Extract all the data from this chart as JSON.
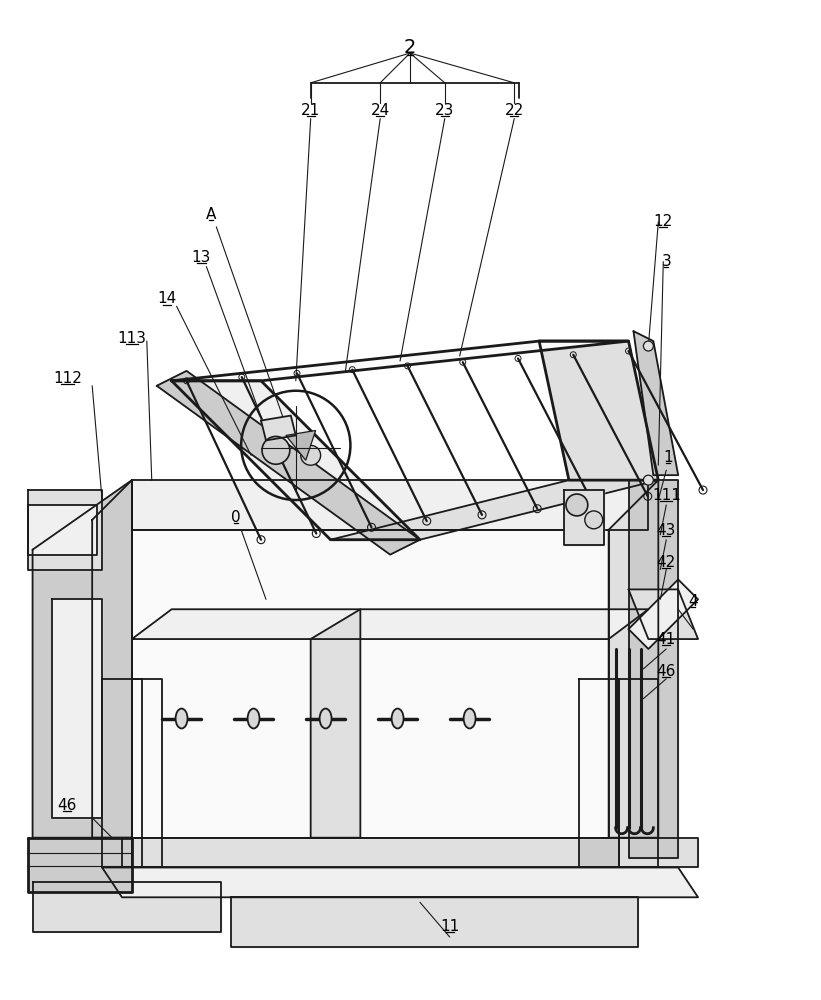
{
  "bg_color": "#ffffff",
  "line_color": "#1a1a1a",
  "fig_width": 8.21,
  "fig_height": 10.0,
  "lw_main": 1.3,
  "lw_thick": 2.0,
  "lw_thin": 0.8,
  "lw_med": 1.0,
  "fill_light": "#f0f0f0",
  "fill_mid": "#e0e0e0",
  "fill_dark": "#cccccc",
  "fill_white": "#fafafa"
}
